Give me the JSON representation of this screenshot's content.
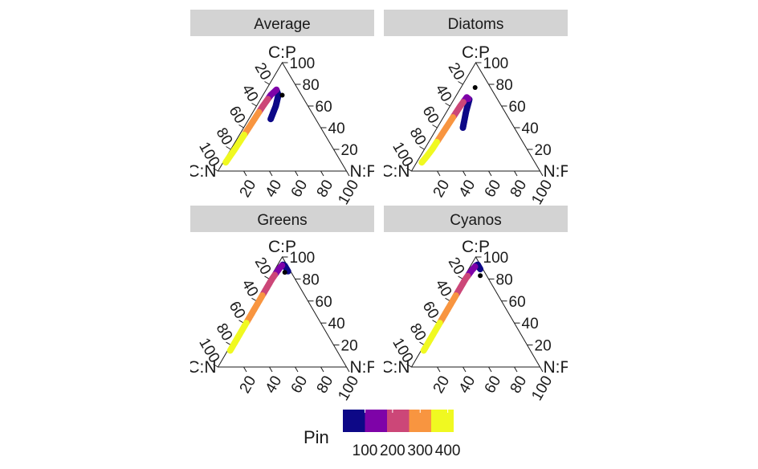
{
  "chart_data": {
    "type": "ternary",
    "vertex_labels": {
      "top": "C:P",
      "left": "C:N",
      "right": "N:P"
    },
    "ticks": [
      20,
      40,
      60,
      80,
      100
    ],
    "color_scale": {
      "title": "Pin",
      "palette": "plasma",
      "range": [
        100,
        500
      ],
      "bins": [
        "#0d0887",
        "#7e03a8",
        "#cc4778",
        "#f89540",
        "#f0f921"
      ],
      "labels": [
        "100",
        "200",
        "300",
        "400"
      ]
    },
    "panels": [
      {
        "title": "Average",
        "observed": {
          "a": 70,
          "b": 15,
          "c": 15
        },
        "path": [
          {
            "a": 48,
            "b": 35,
            "c": 17,
            "pin": 100
          },
          {
            "a": 60,
            "b": 25,
            "c": 15,
            "pin": 110
          },
          {
            "a": 70,
            "b": 18,
            "c": 12,
            "pin": 140
          },
          {
            "a": 75,
            "b": 17,
            "c": 8,
            "pin": 180
          },
          {
            "a": 70,
            "b": 24,
            "c": 6,
            "pin": 230
          },
          {
            "a": 60,
            "b": 35,
            "c": 5,
            "pin": 320
          },
          {
            "a": 40,
            "b": 56,
            "c": 4,
            "pin": 400
          },
          {
            "a": 20,
            "b": 77,
            "c": 3,
            "pin": 460
          },
          {
            "a": 8,
            "b": 90,
            "c": 2,
            "pin": 500
          }
        ]
      },
      {
        "title": "Diatoms",
        "observed": {
          "a": 77,
          "b": 12,
          "c": 11
        },
        "path": [
          {
            "a": 40,
            "b": 40,
            "c": 20,
            "pin": 100
          },
          {
            "a": 55,
            "b": 30,
            "c": 15,
            "pin": 120
          },
          {
            "a": 66,
            "b": 22,
            "c": 12,
            "pin": 160
          },
          {
            "a": 68,
            "b": 23,
            "c": 9,
            "pin": 220
          },
          {
            "a": 60,
            "b": 32,
            "c": 8,
            "pin": 300
          },
          {
            "a": 40,
            "b": 53,
            "c": 7,
            "pin": 380
          },
          {
            "a": 20,
            "b": 74,
            "c": 6,
            "pin": 440
          },
          {
            "a": 13,
            "b": 82,
            "c": 5,
            "pin": 470
          },
          {
            "a": 8,
            "b": 88,
            "c": 4,
            "pin": 500
          }
        ]
      },
      {
        "title": "Greens",
        "observed": {
          "a": 86,
          "b": 5,
          "c": 9
        },
        "path": [
          {
            "a": 87,
            "b": 2,
            "c": 11,
            "pin": 100
          },
          {
            "a": 92,
            "b": 2,
            "c": 6,
            "pin": 130
          },
          {
            "a": 93,
            "b": 3,
            "c": 4,
            "pin": 170
          },
          {
            "a": 90,
            "b": 7,
            "c": 3,
            "pin": 220
          },
          {
            "a": 80,
            "b": 18,
            "c": 2,
            "pin": 290
          },
          {
            "a": 60,
            "b": 38,
            "c": 2,
            "pin": 360
          },
          {
            "a": 40,
            "b": 58,
            "c": 2,
            "pin": 420
          },
          {
            "a": 20,
            "b": 78,
            "c": 2,
            "pin": 470
          },
          {
            "a": 15,
            "b": 83,
            "c": 2,
            "pin": 500
          }
        ]
      },
      {
        "title": "Cyanos",
        "observed": {
          "a": 83,
          "b": 5,
          "c": 12
        },
        "path": [
          {
            "a": 89,
            "b": 2,
            "c": 9,
            "pin": 100
          },
          {
            "a": 93,
            "b": 2,
            "c": 5,
            "pin": 130
          },
          {
            "a": 92,
            "b": 4,
            "c": 4,
            "pin": 170
          },
          {
            "a": 88,
            "b": 9,
            "c": 3,
            "pin": 220
          },
          {
            "a": 80,
            "b": 18,
            "c": 2,
            "pin": 290
          },
          {
            "a": 60,
            "b": 38,
            "c": 2,
            "pin": 360
          },
          {
            "a": 40,
            "b": 58,
            "c": 2,
            "pin": 420
          },
          {
            "a": 20,
            "b": 78,
            "c": 2,
            "pin": 470
          },
          {
            "a": 15,
            "b": 83,
            "c": 2,
            "pin": 500
          }
        ]
      }
    ]
  }
}
